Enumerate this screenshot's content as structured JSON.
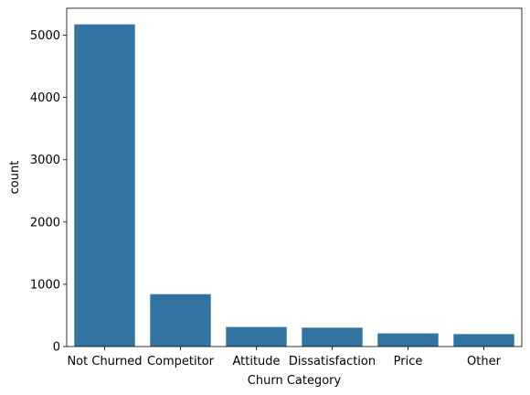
{
  "chart_data": {
    "type": "bar",
    "categories": [
      "Not Churned",
      "Competitor",
      "Attitude",
      "Dissatisfaction",
      "Price",
      "Other"
    ],
    "values": [
      5174,
      841,
      314,
      303,
      211,
      200
    ],
    "xlabel": "Churn Category",
    "ylabel": "count",
    "ylim": [
      0,
      5433
    ],
    "yticks": [
      0,
      1000,
      2000,
      3000,
      4000,
      5000
    ],
    "bar_color": "#3274a1",
    "grid": false
  }
}
